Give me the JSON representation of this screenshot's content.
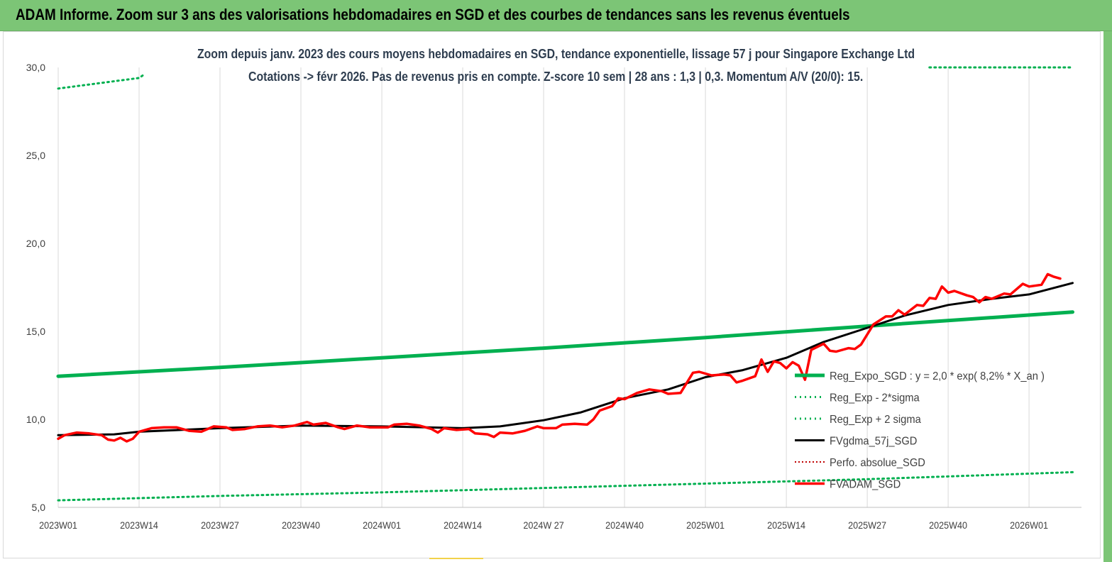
{
  "banner": {
    "title": "ADAM Informe. Zoom sur 3 ans des valorisations hebdomadaires en SGD et des courbes de tendances sans les revenus éventuels"
  },
  "colors": {
    "banner": "#7cc576",
    "trend": "#00b050",
    "price": "#ff0000",
    "smooth": "#000000",
    "perf": "#c00000"
  },
  "chart_data": {
    "type": "line",
    "title": "Zoom depuis janv. 2023 des cours moyens hebdomadaires en SGD, tendance exponentielle, lissage 57 j pour Singapore Exchange Ltd",
    "subtitle": "Cotations -> févr 2026.  Pas de revenus pris en compte. Z-score 10 sem  | 28 ans : 1,3  | 0,3. Momentum A/V (20/0): 15.",
    "xlabel": "",
    "ylabel": "",
    "ylim": [
      5,
      30
    ],
    "yticks": [
      "5,0",
      "10,0",
      "15,0",
      "20,0",
      "25,0",
      "30,0"
    ],
    "xticks": [
      "2023W01",
      "2023W14",
      "2023W27",
      "2023W40",
      "2024W01",
      "2024W14",
      "2024W 27",
      "2024W40",
      "2025W01",
      "2025W14",
      "2025W27",
      "2025W40",
      "2026W01"
    ],
    "grid": "vertical",
    "legend_position": "right",
    "series": [
      {
        "name": "Reg_Expo_SGD : y = 2,0 * exp( 8,2% *  X_an )",
        "style": "solid-thick",
        "points": [
          [
            "2023W01",
            12.45
          ],
          [
            "2023W27",
            12.95
          ],
          [
            "2024W01",
            13.5
          ],
          [
            "2024W27",
            14.05
          ],
          [
            "2025W01",
            14.65
          ],
          [
            "2025W27",
            15.3
          ],
          [
            "2026W08",
            16.1
          ]
        ]
      },
      {
        "name": "Reg_Exp - 2*sigma",
        "style": "dotted",
        "points": [
          [
            "2023W01",
            5.4
          ],
          [
            "2023W27",
            5.65
          ],
          [
            "2024W01",
            5.85
          ],
          [
            "2024W27",
            6.1
          ],
          [
            "2025W01",
            6.35
          ],
          [
            "2025W27",
            6.6
          ],
          [
            "2026W08",
            7.0
          ]
        ]
      },
      {
        "name": "Reg_Exp + 2 sigma",
        "style": "dotted",
        "points": [
          [
            "2023W01",
            28.8
          ],
          [
            "2023W14",
            29.4
          ],
          [
            "2023W14+",
            29.55
          ]
        ],
        "points_right": [
          [
            "2025W37",
            30.0
          ],
          [
            "2026W08",
            30.0
          ]
        ]
      },
      {
        "name": "FVgdma_57j_SGD",
        "style": "solid",
        "points": [
          [
            "2023W01",
            9.1
          ],
          [
            "2023W10",
            9.15
          ],
          [
            "2023W14",
            9.3
          ],
          [
            "2023W27",
            9.5
          ],
          [
            "2023W40",
            9.65
          ],
          [
            "2024W01",
            9.6
          ],
          [
            "2024W14",
            9.5
          ],
          [
            "2024W20",
            9.6
          ],
          [
            "2024W27",
            9.95
          ],
          [
            "2024W33",
            10.4
          ],
          [
            "2024W40",
            11.2
          ],
          [
            "2024W47",
            11.7
          ],
          [
            "2025W01",
            12.4
          ],
          [
            "2025W07",
            12.8
          ],
          [
            "2025W14",
            13.5
          ],
          [
            "2025W20",
            14.4
          ],
          [
            "2025W27",
            15.2
          ],
          [
            "2025W33",
            15.9
          ],
          [
            "2025W40",
            16.5
          ],
          [
            "2025W47",
            16.85
          ],
          [
            "2026W01",
            17.1
          ],
          [
            "2026W08",
            17.75
          ]
        ]
      },
      {
        "name": "Perfo. absolue_SGD",
        "style": "dotted-dark",
        "points": []
      },
      {
        "name": "FVADAM_SGD",
        "style": "solid-thick",
        "points": [
          [
            "2023W01",
            8.9
          ],
          [
            "2023W02",
            9.1
          ],
          [
            "2023W04",
            9.25
          ],
          [
            "2023W06",
            9.2
          ],
          [
            "2023W08",
            9.1
          ],
          [
            "2023W09",
            8.85
          ],
          [
            "2023W10",
            8.8
          ],
          [
            "2023W11",
            8.95
          ],
          [
            "2023W12",
            8.75
          ],
          [
            "2023W13",
            8.9
          ],
          [
            "2023W14",
            9.3
          ],
          [
            "2023W16",
            9.5
          ],
          [
            "2023W18",
            9.55
          ],
          [
            "2023W20",
            9.55
          ],
          [
            "2023W22",
            9.35
          ],
          [
            "2023W24",
            9.3
          ],
          [
            "2023W26",
            9.6
          ],
          [
            "2023W28",
            9.55
          ],
          [
            "2023W29",
            9.4
          ],
          [
            "2023W31",
            9.45
          ],
          [
            "2023W33",
            9.6
          ],
          [
            "2023W35",
            9.65
          ],
          [
            "2023W37",
            9.55
          ],
          [
            "2023W39",
            9.65
          ],
          [
            "2023W41",
            9.85
          ],
          [
            "2023W42",
            9.7
          ],
          [
            "2023W44",
            9.8
          ],
          [
            "2023W46",
            9.55
          ],
          [
            "2023W47",
            9.45
          ],
          [
            "2023W49",
            9.65
          ],
          [
            "2023W51",
            9.55
          ],
          [
            "2024W02",
            9.55
          ],
          [
            "2024W03",
            9.7
          ],
          [
            "2024W05",
            9.75
          ],
          [
            "2024W07",
            9.65
          ],
          [
            "2024W09",
            9.45
          ],
          [
            "2024W10",
            9.25
          ],
          [
            "2024W11",
            9.5
          ],
          [
            "2024W13",
            9.4
          ],
          [
            "2024W15",
            9.45
          ],
          [
            "2024W16",
            9.2
          ],
          [
            "2024W18",
            9.15
          ],
          [
            "2024W19",
            9.0
          ],
          [
            "2024W20",
            9.25
          ],
          [
            "2024W22",
            9.2
          ],
          [
            "2024W24",
            9.35
          ],
          [
            "2024W26",
            9.6
          ],
          [
            "2024W27",
            9.5
          ],
          [
            "2024W29",
            9.5
          ],
          [
            "2024W30",
            9.7
          ],
          [
            "2024W32",
            9.75
          ],
          [
            "2024W34",
            9.7
          ],
          [
            "2024W35",
            10.0
          ],
          [
            "2024W36",
            10.5
          ],
          [
            "2024W38",
            10.75
          ],
          [
            "2024W39",
            11.2
          ],
          [
            "2024W40",
            11.15
          ],
          [
            "2024W42",
            11.5
          ],
          [
            "2024W44",
            11.7
          ],
          [
            "2024W46",
            11.6
          ],
          [
            "2024W47",
            11.45
          ],
          [
            "2024W49",
            11.5
          ],
          [
            "2024W51",
            12.65
          ],
          [
            "2024W52",
            12.7
          ],
          [
            "2025W02",
            12.5
          ],
          [
            "2025W04",
            12.55
          ],
          [
            "2025W05",
            12.5
          ],
          [
            "2025W06",
            12.1
          ],
          [
            "2025W07",
            12.2
          ],
          [
            "2025W09",
            12.45
          ],
          [
            "2025W10",
            13.4
          ],
          [
            "2025W11",
            12.7
          ],
          [
            "2025W12",
            13.3
          ],
          [
            "2025W13",
            13.2
          ],
          [
            "2025W14",
            12.9
          ],
          [
            "2025W15",
            13.25
          ],
          [
            "2025W16",
            13.05
          ],
          [
            "2025W17",
            12.25
          ],
          [
            "2025W18",
            13.95
          ],
          [
            "2025W20",
            14.3
          ],
          [
            "2025W21",
            13.9
          ],
          [
            "2025W22",
            13.85
          ],
          [
            "2025W24",
            14.05
          ],
          [
            "2025W25",
            14.0
          ],
          [
            "2025W26",
            14.25
          ],
          [
            "2025W28",
            15.4
          ],
          [
            "2025W30",
            15.85
          ],
          [
            "2025W31",
            15.85
          ],
          [
            "2025W32",
            16.2
          ],
          [
            "2025W33",
            15.95
          ],
          [
            "2025W35",
            16.5
          ],
          [
            "2025W36",
            16.45
          ],
          [
            "2025W37",
            16.9
          ],
          [
            "2025W38",
            16.85
          ],
          [
            "2025W39",
            17.55
          ],
          [
            "2025W40",
            17.2
          ],
          [
            "2025W41",
            17.3
          ],
          [
            "2025W43",
            17.05
          ],
          [
            "2025W44",
            16.95
          ],
          [
            "2025W45",
            16.65
          ],
          [
            "2025W46",
            16.95
          ],
          [
            "2025W47",
            16.85
          ],
          [
            "2025W49",
            17.15
          ],
          [
            "2025W50",
            17.1
          ],
          [
            "2025W52",
            17.7
          ],
          [
            "2026W01",
            17.55
          ],
          [
            "2026W03",
            17.65
          ],
          [
            "2026W04",
            18.25
          ],
          [
            "2026W05",
            18.1
          ],
          [
            "2026W06",
            18.0
          ]
        ]
      }
    ]
  }
}
